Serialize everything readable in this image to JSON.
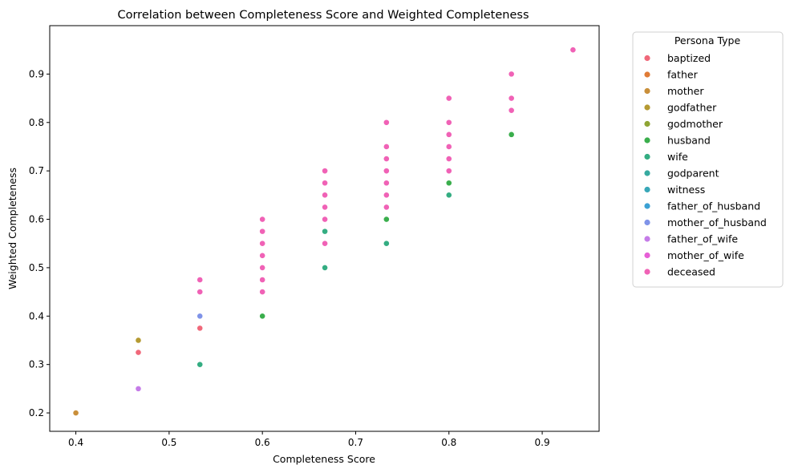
{
  "chart_data": {
    "type": "scatter",
    "title": "Correlation between Completeness Score and Weighted Completeness",
    "xlabel": "Completeness Score",
    "ylabel": "Weighted Completeness",
    "xlim": [
      0.372,
      0.961
    ],
    "ylim": [
      0.162,
      1.0
    ],
    "xticks": [
      0.4,
      0.5,
      0.6,
      0.7,
      0.8,
      0.9
    ],
    "xtick_labels": [
      "0.4",
      "0.5",
      "0.6",
      "0.7",
      "0.8",
      "0.9"
    ],
    "yticks": [
      0.2,
      0.3,
      0.4,
      0.5,
      0.6,
      0.7,
      0.8,
      0.9
    ],
    "ytick_labels": [
      "0.2",
      "0.3",
      "0.4",
      "0.5",
      "0.6",
      "0.7",
      "0.8",
      "0.9"
    ],
    "grid": false,
    "legend": {
      "title": "Persona Type",
      "placement": "outside-right-top"
    },
    "series": [
      {
        "name": "baptized",
        "color": "#f0687a",
        "points": [
          [
            0.467,
            0.325
          ],
          [
            0.533,
            0.375
          ]
        ]
      },
      {
        "name": "father",
        "color": "#e07b36",
        "points": []
      },
      {
        "name": "mother",
        "color": "#c98f3a",
        "points": [
          [
            0.4,
            0.2
          ]
        ]
      },
      {
        "name": "godfather",
        "color": "#b59a32",
        "points": [
          [
            0.467,
            0.35
          ]
        ]
      },
      {
        "name": "godmother",
        "color": "#8fa534",
        "points": []
      },
      {
        "name": "husband",
        "color": "#3aae4c",
        "points": [
          [
            0.6,
            0.4
          ],
          [
            0.733,
            0.6
          ],
          [
            0.8,
            0.675
          ],
          [
            0.867,
            0.775
          ]
        ]
      },
      {
        "name": "wife",
        "color": "#34ad82",
        "points": [
          [
            0.533,
            0.3
          ],
          [
            0.667,
            0.5
          ],
          [
            0.667,
            0.575
          ],
          [
            0.733,
            0.55
          ],
          [
            0.8,
            0.65
          ]
        ]
      },
      {
        "name": "godparent",
        "color": "#36aaa0",
        "points": []
      },
      {
        "name": "witness",
        "color": "#38a7b8",
        "points": []
      },
      {
        "name": "father_of_husband",
        "color": "#3ca1d4",
        "points": []
      },
      {
        "name": "mother_of_husband",
        "color": "#7f93e8",
        "points": [
          [
            0.533,
            0.4
          ]
        ]
      },
      {
        "name": "father_of_wife",
        "color": "#c57ce8",
        "points": [
          [
            0.467,
            0.25
          ]
        ]
      },
      {
        "name": "mother_of_wife",
        "color": "#e65fd6",
        "points": []
      },
      {
        "name": "deceased",
        "color": "#f062b6",
        "points": [
          [
            0.533,
            0.45
          ],
          [
            0.533,
            0.475
          ],
          [
            0.6,
            0.45
          ],
          [
            0.6,
            0.475
          ],
          [
            0.6,
            0.5
          ],
          [
            0.6,
            0.525
          ],
          [
            0.6,
            0.55
          ],
          [
            0.6,
            0.575
          ],
          [
            0.6,
            0.6
          ],
          [
            0.667,
            0.55
          ],
          [
            0.667,
            0.6
          ],
          [
            0.667,
            0.625
          ],
          [
            0.667,
            0.65
          ],
          [
            0.667,
            0.675
          ],
          [
            0.667,
            0.7
          ],
          [
            0.733,
            0.625
          ],
          [
            0.733,
            0.65
          ],
          [
            0.733,
            0.675
          ],
          [
            0.733,
            0.7
          ],
          [
            0.733,
            0.725
          ],
          [
            0.733,
            0.75
          ],
          [
            0.733,
            0.8
          ],
          [
            0.8,
            0.7
          ],
          [
            0.8,
            0.725
          ],
          [
            0.8,
            0.75
          ],
          [
            0.8,
            0.775
          ],
          [
            0.8,
            0.8
          ],
          [
            0.8,
            0.85
          ],
          [
            0.867,
            0.825
          ],
          [
            0.867,
            0.85
          ],
          [
            0.867,
            0.9
          ],
          [
            0.933,
            0.95
          ]
        ]
      }
    ]
  }
}
